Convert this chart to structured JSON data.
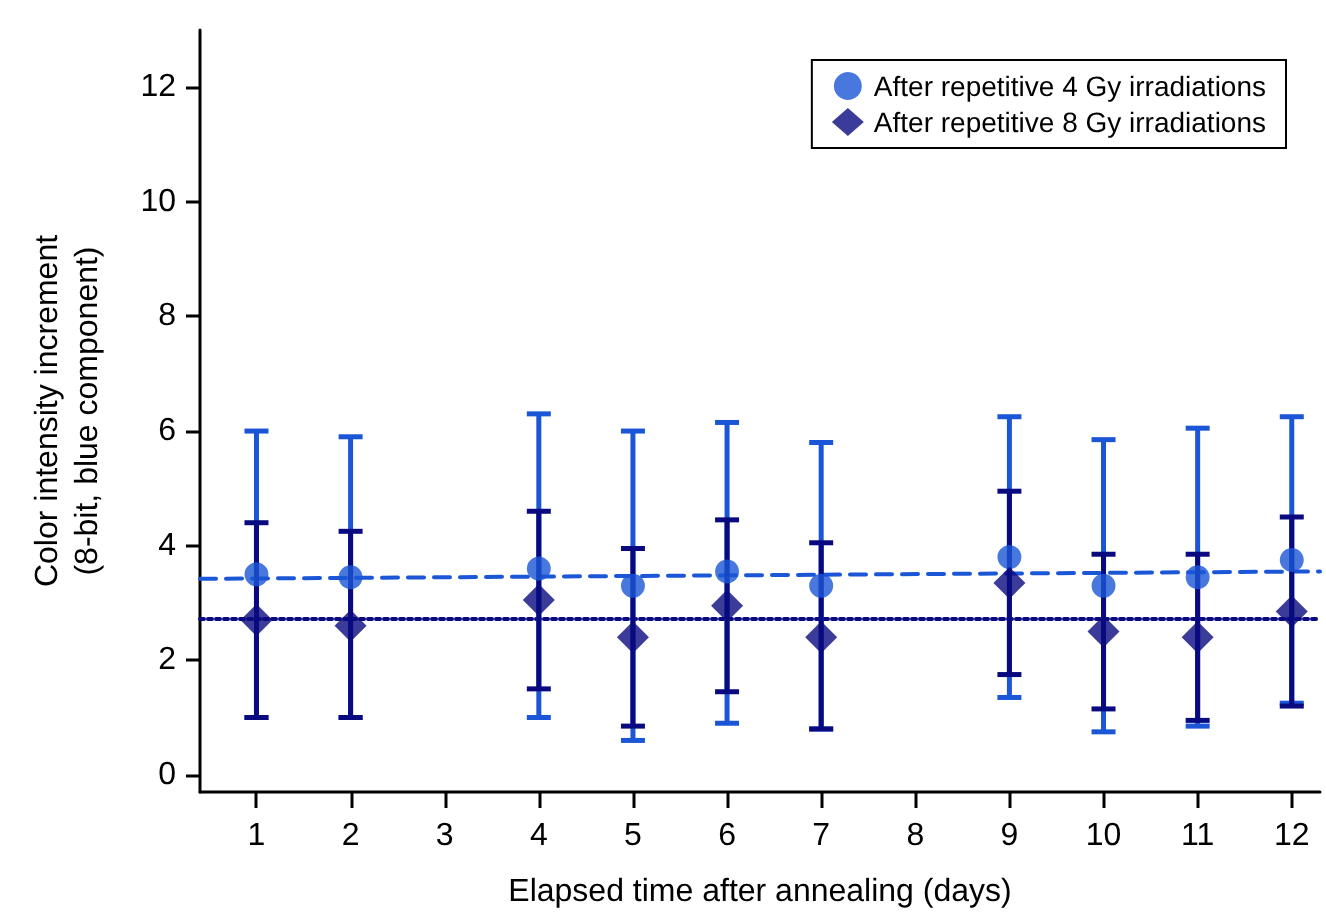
{
  "chart_data": {
    "type": "scatter",
    "xlabel": "Elapsed time after annealing (days)",
    "ylabel": "Color intensity increment\n(8-bit, blue component)",
    "xlim": [
      0.4,
      12.3
    ],
    "xticks": [
      1,
      2,
      3,
      4,
      5,
      6,
      7,
      8,
      9,
      10,
      11,
      12
    ],
    "ylim": [
      -0.3,
      13
    ],
    "yticks": [
      0,
      2,
      4,
      6,
      8,
      10,
      12
    ],
    "grid": false,
    "legend": "top right",
    "series": [
      {
        "name": "After repetitive 4 Gy irradiations",
        "color": "#1a56d6",
        "marker": "circle",
        "x": [
          1,
          2,
          4,
          5,
          6,
          7,
          9,
          10,
          11,
          12
        ],
        "values": [
          3.5,
          3.45,
          3.6,
          3.3,
          3.55,
          3.3,
          3.8,
          3.3,
          3.45,
          3.75
        ],
        "errors": [
          [
            1.0,
            6.0
          ],
          [
            1.0,
            5.9
          ],
          [
            1.0,
            6.3
          ],
          [
            0.6,
            6.0
          ],
          [
            0.9,
            6.15
          ],
          [
            0.8,
            5.8
          ],
          [
            1.35,
            6.25
          ],
          [
            0.75,
            5.85
          ],
          [
            0.85,
            6.05
          ],
          [
            1.25,
            6.25
          ]
        ]
      },
      {
        "name": "After repetitive 8 Gy irradiations",
        "color": "#0a0a80",
        "marker": "diamond",
        "x": [
          1,
          2,
          4,
          5,
          6,
          7,
          9,
          10,
          11,
          12
        ],
        "values": [
          2.7,
          2.6,
          3.05,
          2.4,
          2.95,
          2.4,
          3.35,
          2.5,
          2.4,
          2.85
        ],
        "errors": [
          [
            1.0,
            4.4
          ],
          [
            1.0,
            4.25
          ],
          [
            1.5,
            4.6
          ],
          [
            0.85,
            3.95
          ],
          [
            1.45,
            4.45
          ],
          [
            0.8,
            4.05
          ],
          [
            1.75,
            4.95
          ],
          [
            1.15,
            3.85
          ],
          [
            0.95,
            3.85
          ],
          [
            1.2,
            4.5
          ]
        ]
      },
      {
        "type": "line",
        "color": "#1a56d6",
        "line_style": "dashed",
        "marker": "none",
        "x": [
          0.4,
          12.3
        ],
        "values": [
          3.42,
          3.55
        ]
      },
      {
        "type": "line",
        "color": "#0a0a80",
        "line_style": "dotted",
        "marker": "none",
        "x": [
          0.4,
          12.3
        ],
        "values": [
          2.72,
          2.72
        ]
      }
    ]
  }
}
